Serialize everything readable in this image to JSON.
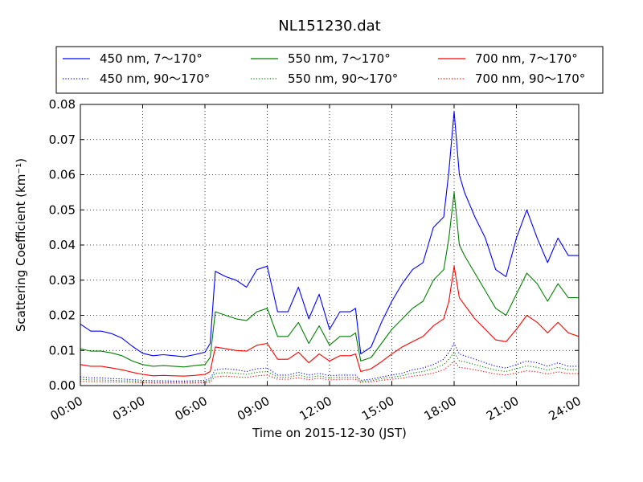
{
  "chart_data": {
    "type": "line",
    "title": "NL151230.dat",
    "xlabel": "Time on 2015-12-30 (JST)",
    "ylabel": "Scattering Coefficient (km⁻¹)",
    "xlim": [
      "00:00",
      "24:00"
    ],
    "ylim": [
      0,
      0.08
    ],
    "x_ticks": [
      "00:00",
      "03:00",
      "06:00",
      "09:00",
      "12:00",
      "15:00",
      "18:00",
      "21:00",
      "24:00"
    ],
    "y_ticks": [
      "0.00",
      "0.01",
      "0.02",
      "0.03",
      "0.04",
      "0.05",
      "0.06",
      "0.07",
      "0.08"
    ],
    "grid": true,
    "legend_position": "top",
    "x": [
      "00:00",
      "00:30",
      "01:00",
      "01:30",
      "02:00",
      "02:30",
      "03:00",
      "03:30",
      "04:00",
      "04:30",
      "05:00",
      "05:30",
      "06:00",
      "06:15",
      "06:30",
      "07:00",
      "07:30",
      "08:00",
      "08:30",
      "09:00",
      "09:30",
      "10:00",
      "10:30",
      "11:00",
      "11:30",
      "12:00",
      "12:30",
      "13:00",
      "13:15",
      "13:30",
      "14:00",
      "14:30",
      "15:00",
      "15:30",
      "16:00",
      "16:30",
      "17:00",
      "17:30",
      "17:45",
      "18:00",
      "18:15",
      "18:30",
      "19:00",
      "19:30",
      "20:00",
      "20:30",
      "21:00",
      "21:30",
      "22:00",
      "22:30",
      "23:00",
      "23:30",
      "24:00"
    ],
    "series": [
      {
        "name": "450 nm, 7～170°",
        "color": "#0000ff",
        "style": "solid",
        "values": [
          0.0175,
          0.0155,
          0.0155,
          0.0148,
          0.0135,
          0.0112,
          0.0092,
          0.0085,
          0.0088,
          0.0085,
          0.0082,
          0.0088,
          0.0095,
          0.012,
          0.0325,
          0.031,
          0.03,
          0.028,
          0.033,
          0.034,
          0.021,
          0.021,
          0.028,
          0.019,
          0.026,
          0.016,
          0.021,
          0.021,
          0.022,
          0.009,
          0.011,
          0.018,
          0.024,
          0.029,
          0.033,
          0.035,
          0.045,
          0.048,
          0.061,
          0.078,
          0.06,
          0.055,
          0.048,
          0.042,
          0.033,
          0.031,
          0.042,
          0.05,
          0.042,
          0.035,
          0.042,
          0.037,
          0.037
        ]
      },
      {
        "name": "550 nm, 7～170°",
        "color": "#008000",
        "style": "solid",
        "values": [
          0.0105,
          0.0098,
          0.0098,
          0.0093,
          0.0085,
          0.007,
          0.006,
          0.0055,
          0.0057,
          0.0055,
          0.0053,
          0.0057,
          0.006,
          0.008,
          0.021,
          0.02,
          0.019,
          0.0185,
          0.021,
          0.022,
          0.014,
          0.014,
          0.018,
          0.012,
          0.017,
          0.0115,
          0.014,
          0.014,
          0.015,
          0.007,
          0.008,
          0.012,
          0.016,
          0.019,
          0.022,
          0.024,
          0.03,
          0.033,
          0.042,
          0.055,
          0.04,
          0.037,
          0.032,
          0.027,
          0.022,
          0.02,
          0.026,
          0.032,
          0.029,
          0.024,
          0.029,
          0.025,
          0.025
        ]
      },
      {
        "name": "700 nm, 7～170°",
        "color": "#ff0000",
        "style": "solid",
        "values": [
          0.006,
          0.0055,
          0.0055,
          0.005,
          0.0045,
          0.0038,
          0.0032,
          0.0028,
          0.0029,
          0.0028,
          0.0027,
          0.0029,
          0.0032,
          0.004,
          0.011,
          0.0105,
          0.01,
          0.0098,
          0.0115,
          0.012,
          0.0075,
          0.0075,
          0.0095,
          0.0065,
          0.009,
          0.007,
          0.0085,
          0.0085,
          0.009,
          0.004,
          0.0048,
          0.0068,
          0.009,
          0.011,
          0.0125,
          0.014,
          0.017,
          0.019,
          0.024,
          0.034,
          0.025,
          0.023,
          0.019,
          0.016,
          0.013,
          0.0125,
          0.016,
          0.02,
          0.018,
          0.015,
          0.018,
          0.015,
          0.014
        ]
      },
      {
        "name": "450 nm, 90～170°",
        "color": "#0000ff",
        "style": "dotted",
        "values": [
          0.0025,
          0.0022,
          0.0022,
          0.002,
          0.0019,
          0.0017,
          0.0015,
          0.0014,
          0.0014,
          0.0013,
          0.0013,
          0.0014,
          0.0015,
          0.002,
          0.0045,
          0.0048,
          0.0045,
          0.004,
          0.0048,
          0.005,
          0.003,
          0.003,
          0.0038,
          0.003,
          0.0035,
          0.0028,
          0.003,
          0.003,
          0.003,
          0.0015,
          0.0018,
          0.0025,
          0.003,
          0.0035,
          0.0045,
          0.005,
          0.006,
          0.0075,
          0.0095,
          0.012,
          0.009,
          0.0085,
          0.0075,
          0.0065,
          0.0055,
          0.005,
          0.006,
          0.007,
          0.0065,
          0.0055,
          0.0065,
          0.0055,
          0.0055
        ]
      },
      {
        "name": "550 nm, 90～170°",
        "color": "#008000",
        "style": "dotted",
        "values": [
          0.0018,
          0.0016,
          0.0016,
          0.0015,
          0.0014,
          0.0013,
          0.0011,
          0.001,
          0.001,
          0.001,
          0.001,
          0.001,
          0.0011,
          0.0015,
          0.0035,
          0.0037,
          0.0035,
          0.0032,
          0.0038,
          0.004,
          0.0024,
          0.0024,
          0.003,
          0.0023,
          0.0028,
          0.0022,
          0.0024,
          0.0024,
          0.0024,
          0.0012,
          0.0014,
          0.002,
          0.0024,
          0.0028,
          0.0036,
          0.004,
          0.0048,
          0.006,
          0.0075,
          0.0095,
          0.007,
          0.0068,
          0.006,
          0.0052,
          0.0044,
          0.004,
          0.0048,
          0.0056,
          0.0052,
          0.0044,
          0.0052,
          0.0045,
          0.0045
        ]
      },
      {
        "name": "700 nm, 90～170°",
        "color": "#ff0000",
        "style": "dotted",
        "values": [
          0.0012,
          0.0011,
          0.0011,
          0.001,
          0.001,
          0.0009,
          0.0008,
          0.0007,
          0.0007,
          0.0007,
          0.0007,
          0.0007,
          0.0008,
          0.001,
          0.0025,
          0.0027,
          0.0025,
          0.0023,
          0.0028,
          0.003,
          0.0018,
          0.0018,
          0.0022,
          0.0017,
          0.0021,
          0.0016,
          0.0018,
          0.0018,
          0.0018,
          0.0009,
          0.001,
          0.0015,
          0.0018,
          0.0021,
          0.0027,
          0.003,
          0.0036,
          0.0045,
          0.0056,
          0.007,
          0.0052,
          0.005,
          0.0045,
          0.0039,
          0.0033,
          0.003,
          0.0036,
          0.0042,
          0.0039,
          0.0033,
          0.0039,
          0.0034,
          0.0034
        ]
      }
    ]
  }
}
